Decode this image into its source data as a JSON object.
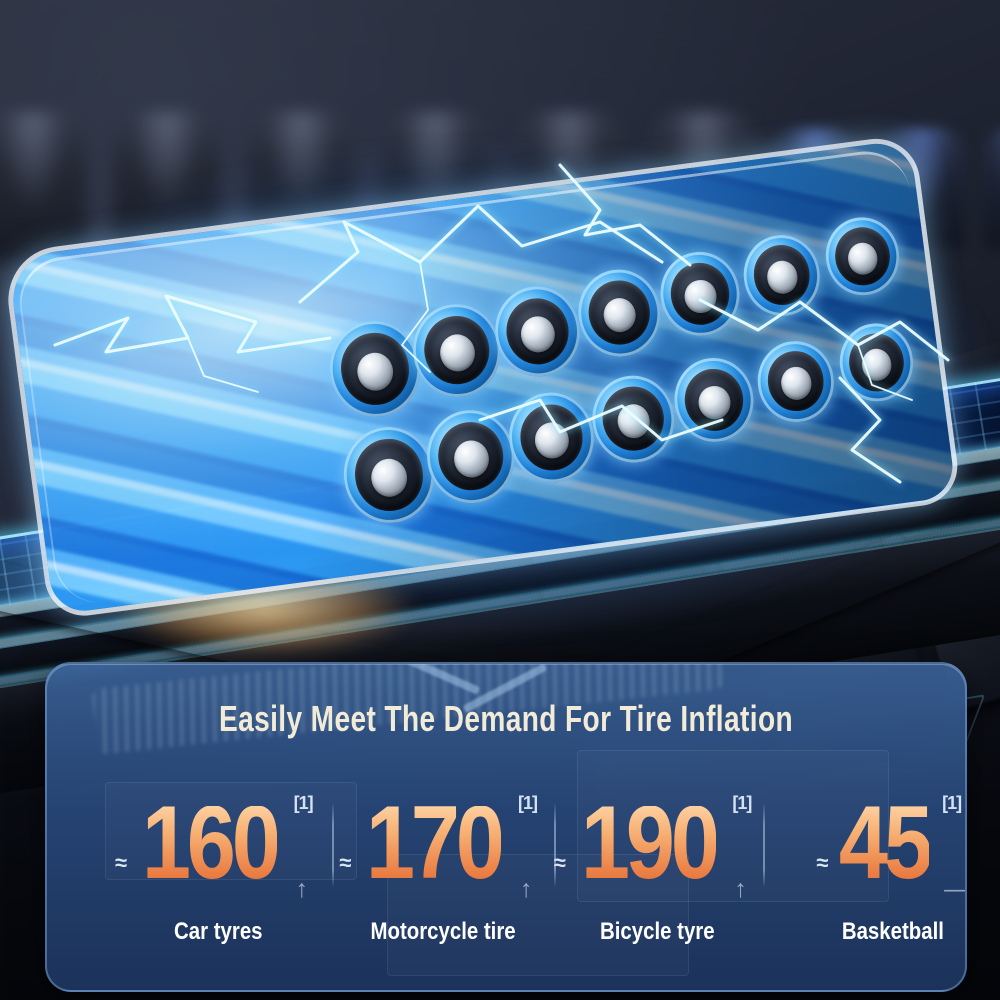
{
  "panel": {
    "title": "Easily Meet The Demand For Tire Inflation",
    "stats": [
      {
        "approx": "≈",
        "value": "160",
        "superscript": "[1]",
        "indicator": "↑",
        "label": "Car tyres"
      },
      {
        "approx": "≈",
        "value": "170",
        "superscript": "[1]",
        "indicator": "↑",
        "label": "Motorcycle tire"
      },
      {
        "approx": "≈",
        "value": "190",
        "superscript": "[1]",
        "indicator": "↑",
        "label": "Bicycle tyre"
      },
      {
        "approx": "≈",
        "value": "45",
        "superscript": "[1]",
        "indicator": "—",
        "label": "Basketball"
      }
    ]
  },
  "scene": {
    "elements": [
      "battery-pack-render",
      "transparent-case",
      "lightning-effects",
      "glowing-circuit-board-stack",
      "gold-connector-pins",
      "background-capacitors",
      "dark-keyboard-blocks",
      "warm-light-glow"
    ]
  },
  "colors": {
    "number_gradient_top": "#fdd0a0",
    "number_gradient_bottom": "#e7743a",
    "title_text": "#f1ebd7",
    "label_text": "#ffffff",
    "panel_background": "#2a4d7e",
    "battery_blue": "#2f9bec",
    "glow_cyan": "#9beeff",
    "pin_gold": "#c9a45b"
  }
}
